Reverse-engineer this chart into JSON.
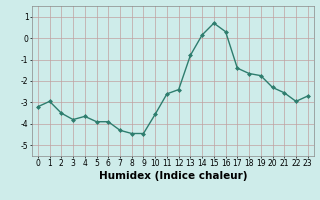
{
  "title": "",
  "xlabel": "Humidex (Indice chaleur)",
  "ylabel": "",
  "x": [
    0,
    1,
    2,
    3,
    4,
    5,
    6,
    7,
    8,
    9,
    10,
    11,
    12,
    13,
    14,
    15,
    16,
    17,
    18,
    19,
    20,
    21,
    22,
    23
  ],
  "y": [
    -3.2,
    -2.95,
    -3.5,
    -3.8,
    -3.65,
    -3.9,
    -3.9,
    -4.3,
    -4.45,
    -4.45,
    -3.55,
    -2.6,
    -2.4,
    -0.8,
    0.15,
    0.7,
    0.3,
    -1.4,
    -1.65,
    -1.75,
    -2.3,
    -2.55,
    -2.95,
    -2.7
  ],
  "line_color": "#2e7d6e",
  "marker": "D",
  "marker_size": 2.0,
  "line_width": 1.0,
  "bg_color": "#ceecea",
  "grid_color": "#c0a0a0",
  "ylim": [
    -5.5,
    1.5
  ],
  "yticks": [
    -5,
    -4,
    -3,
    -2,
    -1,
    0,
    1
  ],
  "ytick_labels": [
    "-5",
    "-4",
    "-3",
    "-2",
    "-1",
    "0",
    "1"
  ],
  "xticks": [
    0,
    1,
    2,
    3,
    4,
    5,
    6,
    7,
    8,
    9,
    10,
    11,
    12,
    13,
    14,
    15,
    16,
    17,
    18,
    19,
    20,
    21,
    22,
    23
  ],
  "tick_fontsize": 5.5,
  "xlabel_fontsize": 7.5
}
